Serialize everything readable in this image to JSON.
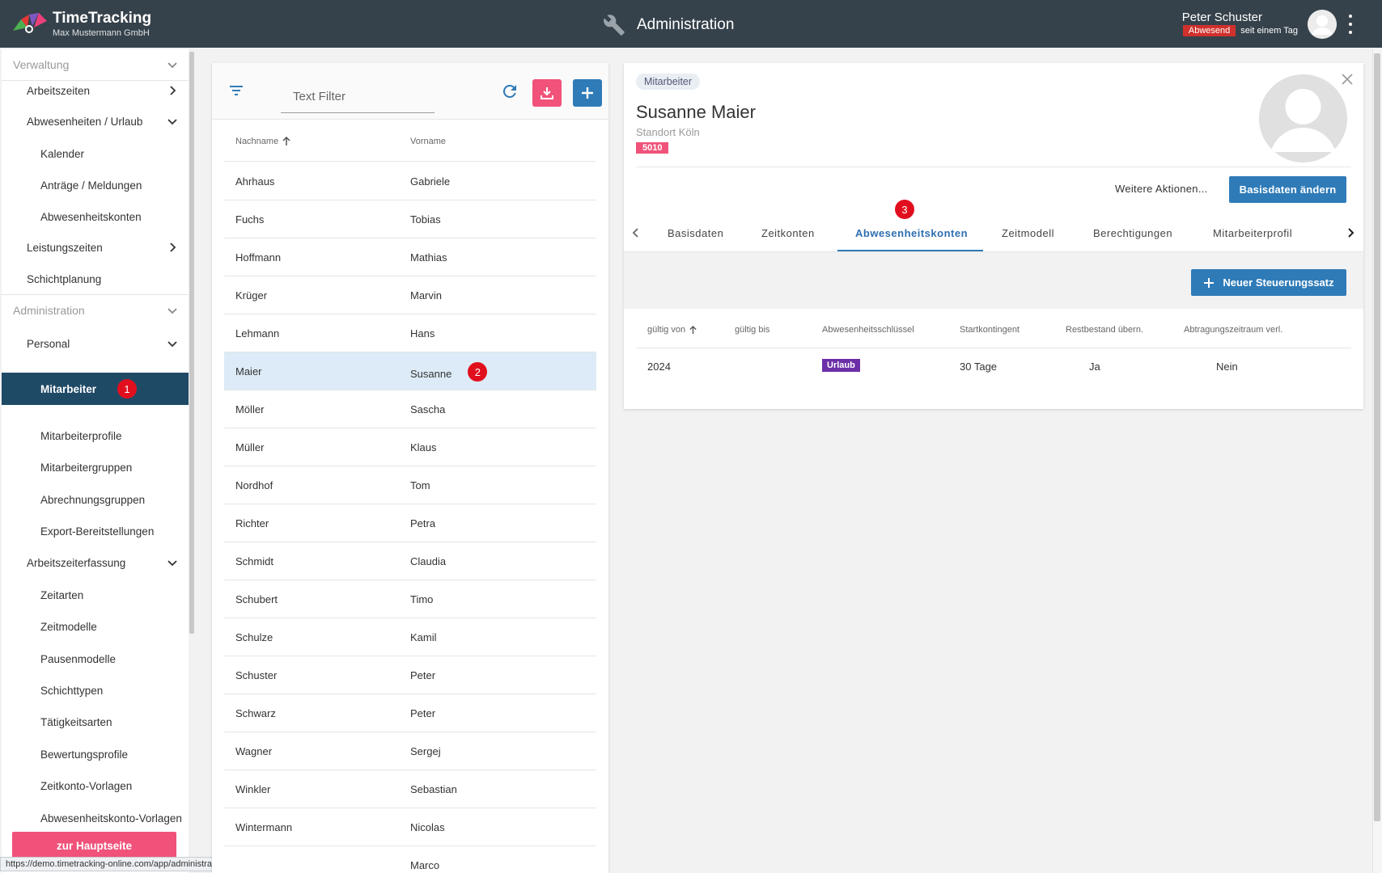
{
  "header": {
    "app_title": "TimeTracking",
    "company": "Max Mustermann GmbH",
    "section_title": "Administration",
    "user_name": "Peter Schuster",
    "status_badge": "Abwesend",
    "status_since": "seit einem Tag"
  },
  "sidebar": {
    "items": [
      {
        "label": "Verwaltung"
      },
      {
        "label": "Arbeitszeiten"
      },
      {
        "label": "Abwesenheiten / Urlaub"
      },
      {
        "label": "Kalender"
      },
      {
        "label": "Anträge / Meldungen"
      },
      {
        "label": "Abwesenheitskonten"
      },
      {
        "label": "Leistungszeiten"
      },
      {
        "label": "Schichtplanung"
      },
      {
        "label": "Administration"
      },
      {
        "label": "Personal"
      },
      {
        "label": "Mitarbeiter",
        "badge": "1"
      },
      {
        "label": "Mitarbeiterprofile"
      },
      {
        "label": "Mitarbeitergruppen"
      },
      {
        "label": "Abrechnungsgruppen"
      },
      {
        "label": "Export-Bereitstellungen"
      },
      {
        "label": "Arbeitszeiterfassung"
      },
      {
        "label": "Zeitarten"
      },
      {
        "label": "Zeitmodelle"
      },
      {
        "label": "Pausenmodelle"
      },
      {
        "label": "Schichttypen"
      },
      {
        "label": "Tätigkeitsarten"
      },
      {
        "label": "Bewertungsprofile"
      },
      {
        "label": "Zeitkonto-Vorlagen"
      },
      {
        "label": "Abwesenheitskonto-Vorlagen"
      }
    ],
    "home_button": "zur Hauptseite",
    "status_url": "https://demo.timetracking-online.com/app/administration/users/list/details/10/absenceBalanceControl"
  },
  "list": {
    "filter_placeholder": "Text Filter",
    "columns": {
      "last": "Nachname",
      "first": "Vorname"
    },
    "rows": [
      {
        "last": "Ahrhaus",
        "first": "Gabriele"
      },
      {
        "last": "Fuchs",
        "first": "Tobias"
      },
      {
        "last": "Hoffmann",
        "first": "Mathias"
      },
      {
        "last": "Krüger",
        "first": "Marvin"
      },
      {
        "last": "Lehmann",
        "first": "Hans"
      },
      {
        "last": "Maier",
        "first": "Susanne",
        "badge": "2"
      },
      {
        "last": "Möller",
        "first": "Sascha"
      },
      {
        "last": "Müller",
        "first": "Klaus"
      },
      {
        "last": "Nordhof",
        "first": "Tom"
      },
      {
        "last": "Richter",
        "first": "Petra"
      },
      {
        "last": "Schmidt",
        "first": "Claudia"
      },
      {
        "last": "Schubert",
        "first": "Timo"
      },
      {
        "last": "Schulze",
        "first": "Kamil"
      },
      {
        "last": "Schuster",
        "first": "Peter"
      },
      {
        "last": "Schwarz",
        "first": "Peter"
      },
      {
        "last": "Wagner",
        "first": "Sergej"
      },
      {
        "last": "Winkler",
        "first": "Sebastian"
      },
      {
        "last": "Wintermann",
        "first": "Nicolas"
      },
      {
        "last": "",
        "first": "Marco"
      }
    ]
  },
  "detail": {
    "chip": "Mitarbeiter",
    "name": "Susanne Maier",
    "location": "Standort Köln",
    "id": "5010",
    "more_actions": "Weitere Aktionen...",
    "edit_button": "Basisdaten ändern",
    "tab_badge": "3",
    "tabs": [
      "Basisdaten",
      "Zeitkonten",
      "Abwesenheitskonten",
      "Zeitmodell",
      "Berechtigungen",
      "Mitarbeiterprofil"
    ],
    "new_button": "Neuer Steuerungssatz",
    "table": {
      "headers": [
        "gültig von",
        "gültig bis",
        "Abwesenheitsschlüssel",
        "Startkontingent",
        "Restbestand übern.",
        "Abtragungszeitraum verl."
      ],
      "row": {
        "valid_from": "2024",
        "valid_to": "",
        "key": "Urlaub",
        "start": "30 Tage",
        "carry": "Ja",
        "extend": "Nein"
      }
    }
  },
  "colors": {
    "header_bg": "#36424b",
    "active_nav": "#1f4a66",
    "primary": "#2f7bb8",
    "pink": "#f0527a",
    "marker_red": "#e10f1e",
    "urlaub_purple": "#6c2fa8"
  }
}
